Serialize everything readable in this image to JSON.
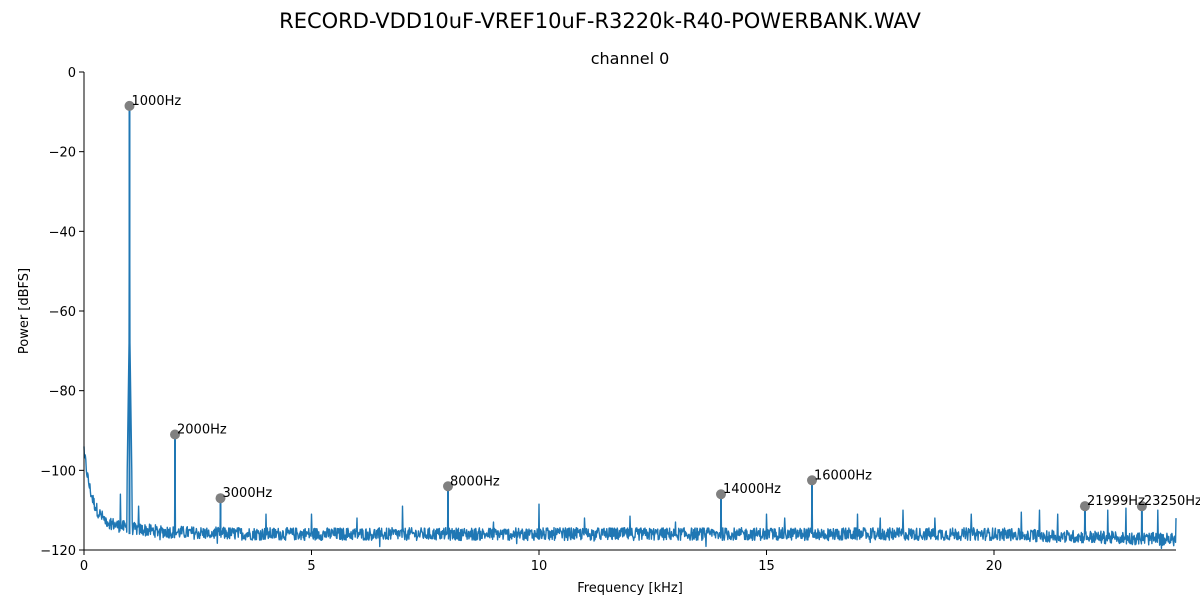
{
  "chart_data": {
    "type": "line",
    "title": "RECORD-VDD10uF-VREF10uF-R3220k-R40-POWERBANK.WAV",
    "subtitle": "channel 0",
    "xlabel": "Frequency [kHz]",
    "ylabel": "Power [dBFS]",
    "xlim": [
      0,
      24
    ],
    "ylim": [
      -120,
      0
    ],
    "x_ticks": [
      0,
      5,
      10,
      15,
      20
    ],
    "y_ticks": [
      0,
      -20,
      -40,
      -60,
      -80,
      -100,
      -120
    ],
    "x_tick_labels": [
      "0",
      "5",
      "10",
      "15",
      "20"
    ],
    "y_tick_labels": [
      "0",
      "−20",
      "−40",
      "−60",
      "−80",
      "−100",
      "−120"
    ],
    "grid": false,
    "line_color": "#1f77b4",
    "marker_color": "#808080",
    "noise_floor_db": -116,
    "peaks": [
      {
        "freq_khz": 1.0,
        "db": -8.5,
        "label": "1000Hz"
      },
      {
        "freq_khz": 2.0,
        "db": -91,
        "label": "2000Hz"
      },
      {
        "freq_khz": 3.0,
        "db": -107,
        "label": "3000Hz"
      },
      {
        "freq_khz": 8.0,
        "db": -104,
        "label": "8000Hz"
      },
      {
        "freq_khz": 14.0,
        "db": -106,
        "label": "14000Hz"
      },
      {
        "freq_khz": 16.0,
        "db": -102.5,
        "label": "16000Hz"
      },
      {
        "freq_khz": 21.999,
        "db": -109,
        "label": "21999Hz"
      },
      {
        "freq_khz": 23.25,
        "db": -109,
        "label": "23250Hz"
      }
    ],
    "minor_spurs": [
      {
        "freq_khz": 0.8,
        "db": -106
      },
      {
        "freq_khz": 1.2,
        "db": -109
      },
      {
        "freq_khz": 4.0,
        "db": -111
      },
      {
        "freq_khz": 5.0,
        "db": -111
      },
      {
        "freq_khz": 6.0,
        "db": -112
      },
      {
        "freq_khz": 7.0,
        "db": -109
      },
      {
        "freq_khz": 9.0,
        "db": -113
      },
      {
        "freq_khz": 10.0,
        "db": -108.5
      },
      {
        "freq_khz": 11.0,
        "db": -112
      },
      {
        "freq_khz": 12.0,
        "db": -111.5
      },
      {
        "freq_khz": 13.0,
        "db": -113
      },
      {
        "freq_khz": 15.0,
        "db": -111
      },
      {
        "freq_khz": 15.4,
        "db": -112
      },
      {
        "freq_khz": 17.0,
        "db": -111
      },
      {
        "freq_khz": 17.5,
        "db": -112
      },
      {
        "freq_khz": 18.0,
        "db": -110
      },
      {
        "freq_khz": 18.7,
        "db": -112
      },
      {
        "freq_khz": 19.5,
        "db": -111
      },
      {
        "freq_khz": 20.6,
        "db": -110.5
      },
      {
        "freq_khz": 21.0,
        "db": -110
      },
      {
        "freq_khz": 21.4,
        "db": -111
      },
      {
        "freq_khz": 22.5,
        "db": -110
      },
      {
        "freq_khz": 22.9,
        "db": -109.5
      },
      {
        "freq_khz": 23.6,
        "db": -110
      },
      {
        "freq_khz": 24.0,
        "db": -112
      }
    ]
  }
}
